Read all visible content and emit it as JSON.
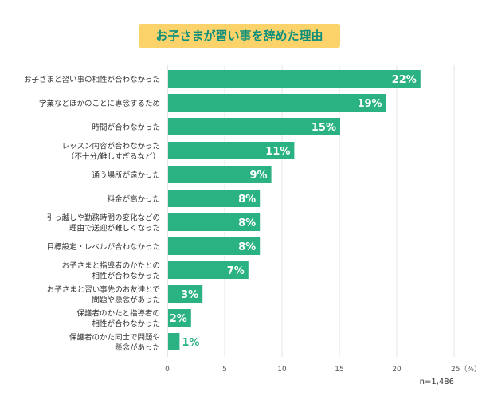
{
  "chart_data": {
    "type": "bar",
    "orientation": "horizontal",
    "title": "お子さまが習い事を辞めた理由",
    "categories": [
      [
        "お子さまと習い事の相性が合わなかった"
      ],
      [
        "学業などほかのことに専念するため"
      ],
      [
        "時間が合わなかった"
      ],
      [
        "レッスン内容が合わなかった",
        "（不十分/難しすぎるなど）"
      ],
      [
        "通う場所が遠かった"
      ],
      [
        "料金が高かった"
      ],
      [
        "引っ越しや勤務時間の変化などの",
        "理由で送迎が難しくなった"
      ],
      [
        "目標設定・レベルが合わなかった"
      ],
      [
        "お子さまと指導者のかたとの",
        "相性が合わなかった"
      ],
      [
        "お子さまと習い事先のお友達とで",
        "問題や懸念があった"
      ],
      [
        "保護者のかたと指導者の",
        "相性が合わなかった"
      ],
      [
        "保護者のかた同士で問題や",
        "懸念があった"
      ]
    ],
    "values": [
      22,
      19,
      15,
      11,
      9,
      8,
      8,
      8,
      7,
      3,
      2,
      1
    ],
    "data_labels": [
      "22%",
      "19%",
      "15%",
      "11%",
      "9%",
      "8%",
      "8%",
      "8%",
      "7%",
      "3%",
      "2%",
      "1%"
    ],
    "xlim": [
      0,
      25
    ],
    "ticks": [
      "0",
      "5",
      "10",
      "15",
      "20",
      "25（%）"
    ],
    "grid": true,
    "bar_color": "#2bb283",
    "title_bg": "#fcd36a",
    "title_color": "#0b8f7c",
    "note": "n=1,486"
  }
}
